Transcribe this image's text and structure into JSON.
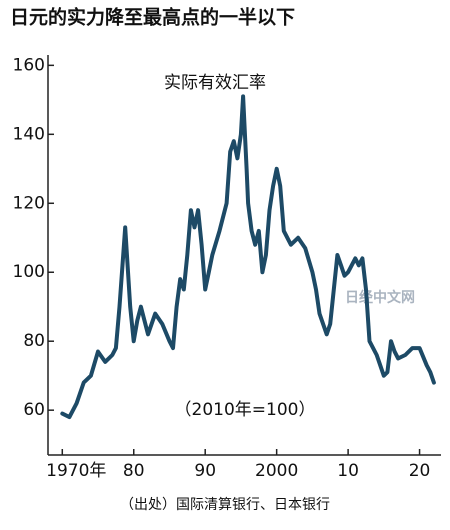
{
  "chart_data": {
    "type": "line",
    "title": "日元的实力降至最高点的一半以下",
    "y_label": "实际有效汇率",
    "annotations": [
      "（2010年=100）",
      "日经中文网"
    ],
    "source": "（出处）国际清算银行、日本银行",
    "color": "#1d4a66",
    "x": [
      1970,
      1971,
      1972,
      1973,
      1974,
      1975,
      1976,
      1977,
      1977.5,
      1978,
      1978.8,
      1979.5,
      1980,
      1980.5,
      1981,
      1982,
      1983,
      1984,
      1985,
      1985.5,
      1986,
      1986.5,
      1987,
      1987.5,
      1988,
      1988.5,
      1989,
      1989.5,
      1990,
      1990.5,
      1991,
      1992,
      1993,
      1993.5,
      1994,
      1994.5,
      1995,
      1995.3,
      1995.8,
      1996,
      1996.5,
      1997,
      1997.5,
      1998,
      1998.5,
      1999,
      1999.5,
      2000,
      2000.5,
      2001,
      2002,
      2003,
      2004,
      2005,
      2005.5,
      2006,
      2007,
      2007.5,
      2008,
      2008.5,
      2009,
      2009.5,
      2010,
      2011,
      2011.5,
      2012,
      2012.5,
      2013,
      2014,
      2015,
      2015.5,
      2016,
      2016.5,
      2017,
      2018,
      2019,
      2020,
      2021,
      2021.5,
      2022
    ],
    "values": [
      59,
      58,
      62,
      68,
      70,
      77,
      74,
      76,
      78,
      90,
      113,
      90,
      80,
      86,
      90,
      82,
      88,
      85,
      80,
      78,
      90,
      98,
      95,
      105,
      118,
      113,
      118,
      108,
      95,
      100,
      105,
      112,
      120,
      135,
      138,
      133,
      140,
      151,
      130,
      120,
      112,
      108,
      112,
      100,
      105,
      118,
      125,
      130,
      125,
      112,
      108,
      110,
      107,
      100,
      95,
      88,
      82,
      85,
      95,
      105,
      102,
      99,
      100,
      104,
      102,
      104,
      95,
      80,
      76,
      70,
      71,
      80,
      77,
      75,
      76,
      78,
      78,
      73,
      71,
      68
    ],
    "xlim": [
      1968,
      2023
    ],
    "ylim": [
      47,
      163
    ],
    "xticks": [
      {
        "value": 1970,
        "label": "1970年"
      },
      {
        "value": 1980,
        "label": "80"
      },
      {
        "value": 1990,
        "label": "90"
      },
      2000,
      {
        "value": 2010,
        "label": "10"
      },
      {
        "value": 2020,
        "label": "20"
      }
    ],
    "yticks": [
      60,
      80,
      100,
      120,
      140,
      160
    ],
    "grid": false
  }
}
